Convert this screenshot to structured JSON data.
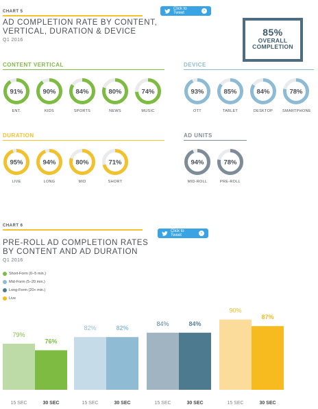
{
  "chart5": {
    "tag": "CHART 5",
    "title_line1": "AD COMPLETION RATE BY CONTENT,",
    "title_line2": "VERTICAL, DURATION & DEVICE",
    "subtitle": "Q1 2016",
    "tweet_label": "Click to Tweet",
    "overall_pct": "85%",
    "overall_line1": "OVERALL",
    "overall_line2": "COMPLETION"
  },
  "chart6": {
    "tag": "CHART 6",
    "title_line1": "PRE-ROLL AD COMPLETION RATES",
    "title_line2": "BY CONTENT AND AD DURATION",
    "subtitle": "Q1 2016",
    "tweet_label": "Click to Tweet"
  },
  "colors": {
    "yellow": "#f1c12e",
    "green": "#7dbb42",
    "blue": "#8cbbd3",
    "gray": "#7e8c98",
    "ring_track": "#e9ebec",
    "short_form": "#7dbb42",
    "mid_form": "#8fbcd4",
    "long_form": "#4d7a8f",
    "live": "#f7ba1f"
  },
  "chart_data": [
    {
      "type": "donut-group",
      "section": "CONTENT VERTICAL",
      "color": "#7dbb42",
      "items": [
        {
          "label": "ENT.",
          "value": 91
        },
        {
          "label": "KIDS",
          "value": 90
        },
        {
          "label": "SPORTS",
          "value": 84
        },
        {
          "label": "NEWS",
          "value": 80
        },
        {
          "label": "MUSIC",
          "value": 74
        }
      ]
    },
    {
      "type": "donut-group",
      "section": "DEVICE",
      "color": "#8cbbd3",
      "items": [
        {
          "label": "OTT",
          "value": 93
        },
        {
          "label": "TABLET",
          "value": 85
        },
        {
          "label": "DESKTOP",
          "value": 84
        },
        {
          "label": "SMARTPHONE",
          "value": 78
        }
      ]
    },
    {
      "type": "donut-group",
      "section": "DURATION",
      "color": "#f1c12e",
      "items": [
        {
          "label": "LIVE",
          "value": 95
        },
        {
          "label": "LONG",
          "value": 94
        },
        {
          "label": "MID",
          "value": 80
        },
        {
          "label": "SHORT",
          "value": 71
        }
      ]
    },
    {
      "type": "donut-group",
      "section": "AD UNITS",
      "color": "#7e8c98",
      "items": [
        {
          "label": "MID-ROLL",
          "value": 94
        },
        {
          "label": "PRE-ROLL",
          "value": 78
        }
      ]
    },
    {
      "type": "bar",
      "legend": [
        {
          "label": "Short-Form (0–5 min.)",
          "color": "#7dbb42"
        },
        {
          "label": "Mid-Form (5–20 min.)",
          "color": "#8fbcd4"
        },
        {
          "label": "Long-Form (20+ min.)",
          "color": "#4d7a8f"
        },
        {
          "label": "Live",
          "color": "#f7ba1f"
        }
      ],
      "groups": [
        {
          "name": "Short-Form",
          "bars": [
            {
              "category": "15 SEC",
              "value": 79,
              "color": "#bcdba6",
              "label_color": "#7dbb42"
            },
            {
              "category": "30 SEC",
              "value": 76,
              "color": "#7dbb42",
              "label_color": "#7dbb42"
            }
          ]
        },
        {
          "name": "Mid-Form",
          "bars": [
            {
              "category": "15 SEC",
              "value": 82,
              "color": "#c5dce8",
              "label_color": "#8fbcd4"
            },
            {
              "category": "30 SEC",
              "value": 82,
              "color": "#8fbcd4",
              "label_color": "#8fbcd4"
            }
          ]
        },
        {
          "name": "Long-Form",
          "bars": [
            {
              "category": "15 SEC",
              "value": 84,
              "color": "#a1b4c1",
              "label_color": "#5a7f93"
            },
            {
              "category": "30 SEC",
              "value": 84,
              "color": "#4d7a8f",
              "label_color": "#5a7f93"
            }
          ]
        },
        {
          "name": "Live",
          "bars": [
            {
              "category": "15 SEC",
              "value": 90,
              "color": "#fbdc9a",
              "label_color": "#f1b81f"
            },
            {
              "category": "30 SEC",
              "value": 87,
              "color": "#f7ba1f",
              "label_color": "#f1b81f"
            }
          ]
        }
      ]
    }
  ]
}
